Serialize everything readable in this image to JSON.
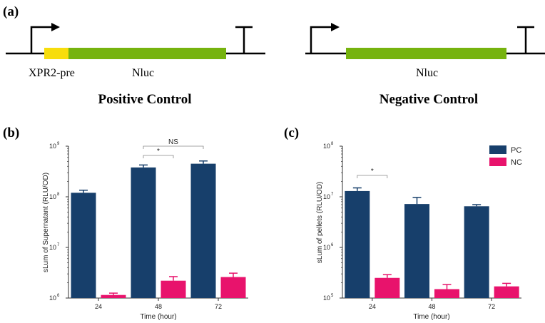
{
  "panels": {
    "a": "(a)",
    "b": "(b)",
    "c": "(c)"
  },
  "constructs": {
    "positive": {
      "title": "Positive Control",
      "signal_label": "XPR2-pre",
      "gene_label": "Nluc"
    },
    "negative": {
      "title": "Negative Control",
      "gene_label": "Nluc"
    }
  },
  "colors": {
    "pc": "#173f6b",
    "nc": "#e8136c",
    "signal": "#f7dd0c",
    "gene": "#76b30e"
  },
  "chart_data": [
    {
      "type": "bar",
      "id": "b",
      "yscale": "log",
      "ylim": [
        1000000,
        1000000000
      ],
      "ylabel": "sLum of Supernatant (RLU/OD)",
      "xlabel": "Time (hour)",
      "categories": [
        "24",
        "48",
        "72"
      ],
      "series": [
        {
          "name": "PC",
          "values": [
            120000000,
            380000000,
            450000000
          ],
          "errors": [
            15000000,
            45000000,
            60000000
          ]
        },
        {
          "name": "NC",
          "values": [
            1150000,
            2200000,
            2600000
          ],
          "errors": [
            100000,
            450000,
            500000
          ]
        }
      ],
      "annotations": [
        {
          "text": "*",
          "between": [
            "48 PC",
            "48 NC"
          ]
        },
        {
          "text": "NS",
          "between": [
            "48 PC",
            "72 PC"
          ]
        }
      ]
    },
    {
      "type": "bar",
      "id": "c",
      "yscale": "log",
      "ylim": [
        100000,
        100000000
      ],
      "ylabel": "sLum of pellets (RLU/OD)",
      "xlabel": "Time (hour)",
      "categories": [
        "24",
        "48",
        "72"
      ],
      "series": [
        {
          "name": "PC",
          "values": [
            13000000,
            7200000,
            6500000
          ],
          "errors": [
            2000000,
            2500000,
            500000
          ]
        },
        {
          "name": "NC",
          "values": [
            250000,
            150000,
            170000
          ],
          "errors": [
            40000,
            35000,
            25000
          ]
        }
      ],
      "legend": [
        "PC",
        "NC"
      ],
      "annotations": [
        {
          "text": "*",
          "between": [
            "24 PC",
            "24 NC"
          ]
        }
      ]
    }
  ]
}
